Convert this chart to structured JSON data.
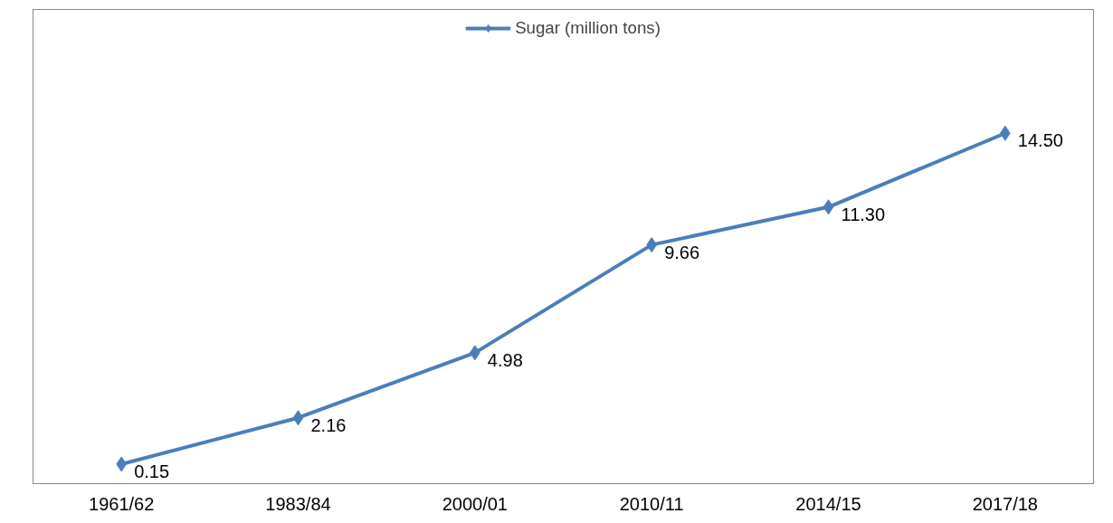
{
  "chart_data": {
    "type": "line",
    "categories": [
      "1961/62",
      "1983/84",
      "2000/01",
      "2010/11",
      "2014/15",
      "2017/18"
    ],
    "series": [
      {
        "name": "Sugar (million tons)",
        "color": "#4a7ebb",
        "values": [
          0.15,
          2.16,
          4.98,
          9.66,
          11.3,
          14.5
        ],
        "value_labels": [
          "0.15",
          "2.16",
          "4.98",
          "9.66",
          "11.30",
          "14.50"
        ]
      }
    ],
    "data_labels": false,
    "marker": "diamond",
    "line_style": "solid",
    "legend": "top",
    "tick_labels": "x",
    "grid": false
  }
}
